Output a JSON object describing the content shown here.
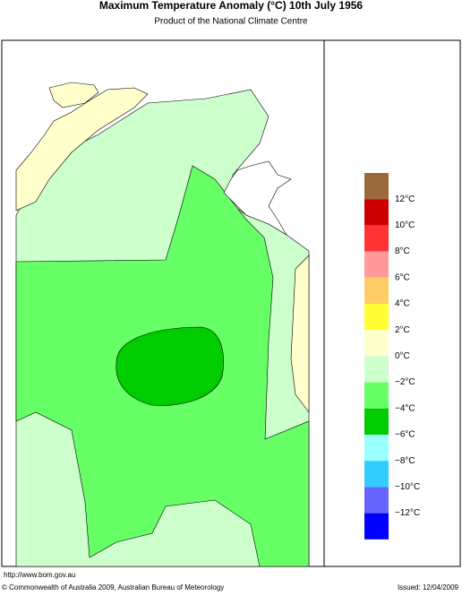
{
  "header": {
    "title": "Maximum Temperature Anomaly (°C)  10th July 1956",
    "subtitle": "Product of the National Climate Centre"
  },
  "legend": {
    "labels": [
      "12°C",
      "10°C",
      "8°C",
      "6°C",
      "4°C",
      "2°C",
      "0°C",
      "−2°C",
      "−4°C",
      "−6°C",
      "−8°C",
      "−10°C",
      "−12°C"
    ],
    "colors": [
      "#9a6a3c",
      "#cc0000",
      "#ff3333",
      "#ff9999",
      "#ffcc66",
      "#ffff33",
      "#ffffcc",
      "#ccffcc",
      "#66ff66",
      "#00cc00",
      "#99ffff",
      "#33ccff",
      "#6666ff",
      "#0000ff"
    ]
  },
  "footer": {
    "url": "http://www.bom.gov.au",
    "copyright": "© Commonwealth of Australia 2009, Australian Bureau of Meteorology",
    "issued": "Issued: 12/04/2009"
  }
}
